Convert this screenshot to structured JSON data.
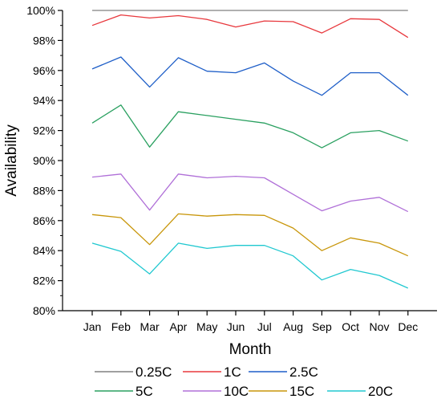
{
  "chart_data": {
    "type": "line",
    "title": "",
    "xlabel": "Month",
    "ylabel": "Availability",
    "categories": [
      "Jan",
      "Feb",
      "Mar",
      "Apr",
      "May",
      "Jun",
      "Jul",
      "Aug",
      "Sep",
      "Oct",
      "Nov",
      "Dec"
    ],
    "ylim": [
      80,
      100
    ],
    "yticks": [
      80,
      82,
      84,
      86,
      88,
      90,
      92,
      94,
      96,
      98,
      100
    ],
    "ytick_labels": [
      "80%",
      "82%",
      "84%",
      "86%",
      "88%",
      "90%",
      "92%",
      "94%",
      "96%",
      "98%",
      "100%"
    ],
    "grid": false,
    "legend_position": "bottom",
    "series": [
      {
        "name": "0.25C",
        "color": "#808080",
        "values": [
          100,
          100,
          100,
          100,
          100,
          100,
          100,
          100,
          100,
          100,
          100,
          100
        ]
      },
      {
        "name": "1C",
        "color": "#e8383d",
        "values": [
          99.0,
          99.7,
          99.5,
          99.65,
          99.4,
          98.9,
          99.3,
          99.25,
          98.5,
          99.45,
          99.4,
          98.2
        ]
      },
      {
        "name": "2.5C",
        "color": "#1f5fc8",
        "values": [
          96.1,
          96.9,
          94.9,
          96.85,
          95.95,
          95.85,
          96.5,
          95.3,
          94.35,
          95.85,
          95.85,
          94.35
        ]
      },
      {
        "name": "5C",
        "color": "#2aa060",
        "values": [
          92.5,
          93.7,
          90.9,
          93.25,
          93.0,
          92.75,
          92.5,
          91.85,
          90.85,
          91.85,
          92.0,
          91.3
        ]
      },
      {
        "name": "10C",
        "color": "#b070d8",
        "values": [
          88.9,
          89.1,
          86.7,
          89.1,
          88.85,
          88.95,
          88.85,
          87.75,
          86.65,
          87.3,
          87.55,
          86.6
        ]
      },
      {
        "name": "15C",
        "color": "#c8960a",
        "values": [
          86.4,
          86.2,
          84.4,
          86.45,
          86.3,
          86.4,
          86.35,
          85.5,
          84.0,
          84.85,
          84.5,
          83.65
        ]
      },
      {
        "name": "20C",
        "color": "#20c8d0",
        "values": [
          84.5,
          83.95,
          82.45,
          84.5,
          84.15,
          84.35,
          84.35,
          83.65,
          82.05,
          82.75,
          82.35,
          81.5
        ]
      }
    ]
  }
}
